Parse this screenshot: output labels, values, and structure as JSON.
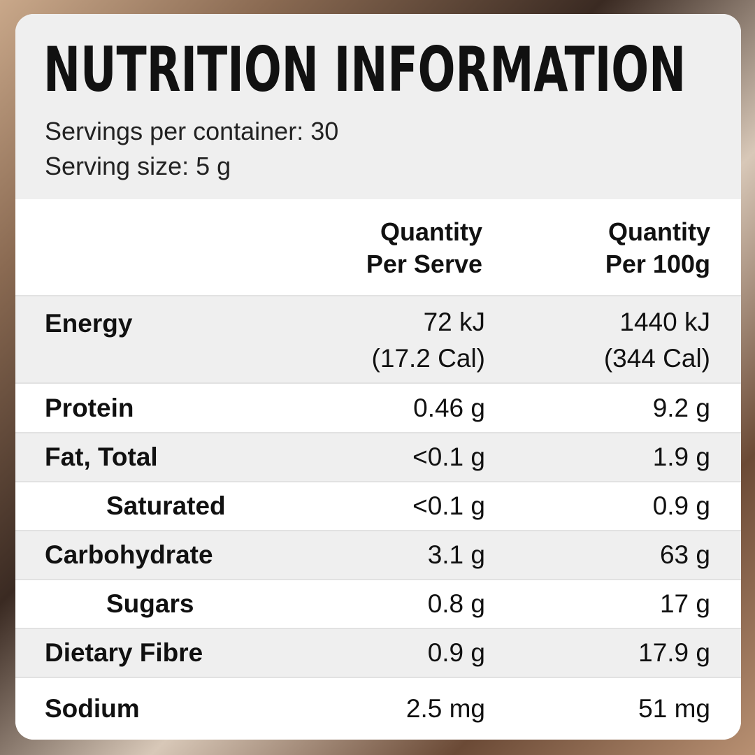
{
  "title": "NUTRITION INFORMATION",
  "servings_per_container": "Servings per container: 30",
  "serving_size": "Serving size: 5 g",
  "columns": {
    "per_serve_line1": "Quantity",
    "per_serve_line2": "Per Serve",
    "per_100g_line1": "Quantity",
    "per_100g_line2": "Per 100g"
  },
  "rows": [
    {
      "label": "Energy",
      "per_serve": "72 kJ",
      "per_serve_extra": "(17.2 Cal)",
      "per_100g": "1440 kJ",
      "per_100g_extra": "(344 Cal)"
    },
    {
      "label": "Protein",
      "per_serve": "0.46 g",
      "per_100g": "9.2 g"
    },
    {
      "label": "Fat, Total",
      "per_serve": "<0.1 g",
      "per_100g": "1.9 g"
    },
    {
      "label": "Saturated",
      "per_serve": "<0.1 g",
      "per_100g": "0.9 g"
    },
    {
      "label": "Carbohydrate",
      "per_serve": "3.1 g",
      "per_100g": "63 g"
    },
    {
      "label": "Sugars",
      "per_serve": "0.8 g",
      "per_100g": "17 g"
    },
    {
      "label": "Dietary Fibre",
      "per_serve": "0.9 g",
      "per_100g": "17.9 g"
    },
    {
      "label": "Sodium",
      "per_serve": "2.5 mg",
      "per_100g": "51 mg"
    }
  ]
}
